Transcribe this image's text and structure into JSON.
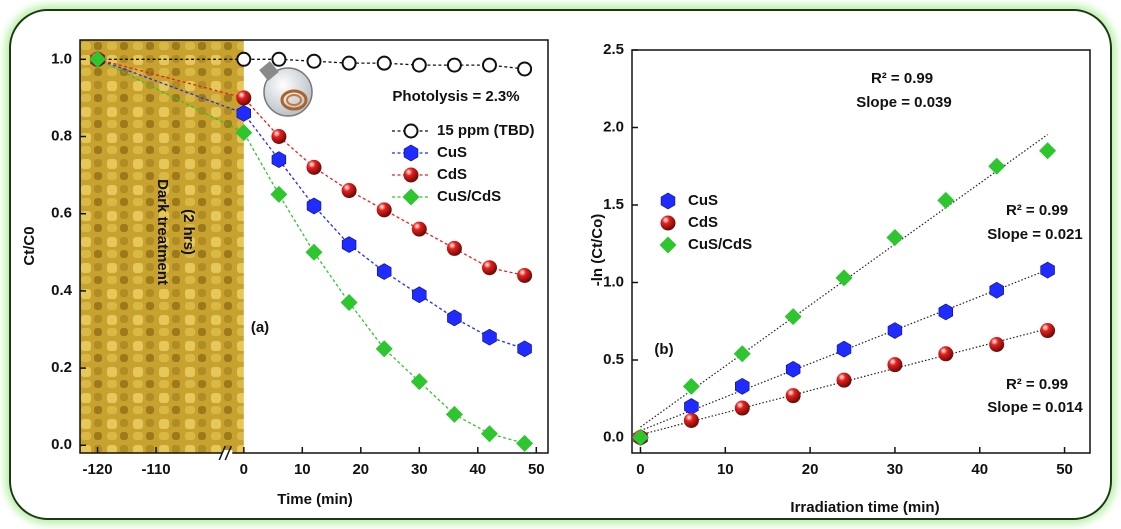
{
  "chart_data": [
    {
      "type": "line",
      "panel_label": "(a)",
      "xlabel": "Time (min)",
      "ylabel": "Ct/C0",
      "x": [
        -120,
        0,
        6,
        12,
        18,
        24,
        30,
        36,
        42,
        48
      ],
      "xlim": [
        -123,
        52
      ],
      "xbreak": [
        -98,
        -3
      ],
      "ylim": [
        -0.02,
        1.05
      ],
      "xticks": [
        -120,
        -110,
        0,
        10,
        20,
        30,
        40,
        50
      ],
      "yticks": [
        {
          "value": 0,
          "label": "0.0"
        },
        0.2,
        0.4,
        0.6,
        0.8,
        {
          "value": 1,
          "label": "1.0"
        }
      ],
      "legend": "upper right",
      "annotations": [
        {
          "text": "Photolysis = 2.3%",
          "color": "#b31fc4"
        },
        {
          "text": "Dark treatment",
          "color": "#111111"
        },
        {
          "text": "(2 hrs)",
          "color": "#111111"
        }
      ],
      "series": [
        {
          "name": "15 ppm (TBD)",
          "color": "#111111",
          "marker": "open-circle",
          "values": [
            1.0,
            1.0,
            1.0,
            0.995,
            0.99,
            0.99,
            0.985,
            0.985,
            0.985,
            0.975
          ]
        },
        {
          "name": "CuS",
          "color": "#1f2bff",
          "marker": "hexagon",
          "values": [
            1.0,
            0.86,
            0.74,
            0.62,
            0.52,
            0.45,
            0.39,
            0.33,
            0.28,
            0.25
          ]
        },
        {
          "name": "CdS",
          "color": "#e8201c",
          "marker": "sphere",
          "values": [
            1.0,
            0.9,
            0.8,
            0.72,
            0.66,
            0.61,
            0.56,
            0.51,
            0.46,
            0.44
          ]
        },
        {
          "name": "CuS/CdS",
          "color": "#2ec62e",
          "marker": "diamond",
          "values": [
            1.0,
            0.81,
            0.65,
            0.5,
            0.37,
            0.25,
            0.165,
            0.08,
            0.03,
            0.005
          ]
        }
      ]
    },
    {
      "type": "scatter",
      "panel_label": "(b)",
      "xlabel": "Irradiation time (min)",
      "ylabel": "-ln (Ct/Co)",
      "x": [
        0,
        6,
        12,
        18,
        24,
        30,
        36,
        42,
        48
      ],
      "xlim": [
        -1,
        53
      ],
      "ylim": [
        -0.1,
        2.5
      ],
      "xticks": [
        0,
        10,
        20,
        30,
        40,
        50
      ],
      "yticks": [
        {
          "value": 0,
          "label": "0.0"
        },
        0.5,
        {
          "value": 1,
          "label": "1.0"
        },
        1.5,
        {
          "value": 2,
          "label": "2.0"
        },
        2.5
      ],
      "legend": "center left",
      "fit_lines": true,
      "annotations": [
        {
          "text": "R² = 0.99",
          "color": "#2ec62e"
        },
        {
          "text": "Slope = 0.039",
          "color": "#2ec62e"
        },
        {
          "text": "R² = 0.99",
          "color": "#1f2bff"
        },
        {
          "text": "Slope = 0.021",
          "color": "#1f2bff"
        },
        {
          "text": "R² = 0.99",
          "color": "#e8201c"
        },
        {
          "text": "Slope = 0.014",
          "color": "#e8201c"
        }
      ],
      "series": [
        {
          "name": "CuS",
          "color": "#1f2bff",
          "marker": "hexagon",
          "values": [
            0,
            0.2,
            0.33,
            0.44,
            0.57,
            0.69,
            0.81,
            0.95,
            1.08
          ]
        },
        {
          "name": "CdS",
          "color": "#e8201c",
          "marker": "sphere",
          "values": [
            0,
            0.11,
            0.19,
            0.27,
            0.37,
            0.47,
            0.54,
            0.6,
            0.69
          ]
        },
        {
          "name": "CuS/CdS",
          "color": "#2ec62e",
          "marker": "diamond",
          "values": [
            0,
            0.33,
            0.54,
            0.78,
            1.03,
            1.29,
            1.53,
            1.75,
            1.85
          ]
        }
      ]
    }
  ]
}
